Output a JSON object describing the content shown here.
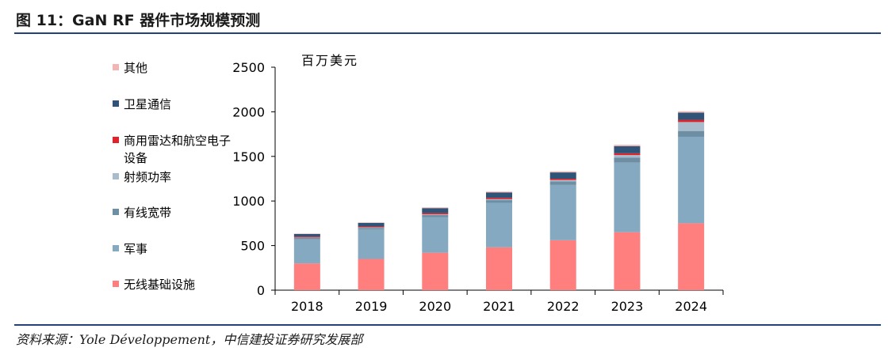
{
  "header": {
    "title": "图 11：GaN RF 器件市场规模预测"
  },
  "footer": {
    "source": "资料来源：Yole Développement，中信建投证券研究发展部"
  },
  "chart_data": {
    "type": "bar",
    "stacked": true,
    "unit_label": "百万美元",
    "categories": [
      "2018",
      "2019",
      "2020",
      "2021",
      "2022",
      "2023",
      "2024"
    ],
    "ylim": [
      0,
      2500
    ],
    "yticks": [
      "0",
      "500",
      "1000",
      "1500",
      "2000",
      "2500"
    ],
    "legend_position": "left",
    "grid": false,
    "series": [
      {
        "name": "无线基础设施",
        "color": "#ff7f7f",
        "values": [
          300,
          350,
          420,
          480,
          560,
          650,
          750
        ]
      },
      {
        "name": "军事",
        "color": "#84a9c0",
        "values": [
          270,
          330,
          400,
          500,
          620,
          780,
          970
        ]
      },
      {
        "name": "有线宽带",
        "color": "#6e8ea4",
        "values": [
          15,
          18,
          22,
          30,
          40,
          55,
          65
        ]
      },
      {
        "name": "射频功率",
        "color": "#a7bccc",
        "values": [
          5,
          6,
          8,
          10,
          15,
          30,
          100
        ]
      },
      {
        "name": "商用雷达和航空电子设备",
        "color": "#e0232b",
        "values": [
          10,
          10,
          15,
          15,
          15,
          20,
          25
        ]
      },
      {
        "name": "卫星通信",
        "color": "#2f5478",
        "values": [
          30,
          40,
          55,
          60,
          70,
          80,
          80
        ]
      },
      {
        "name": "其他",
        "color": "#f3b4b4",
        "values": [
          5,
          6,
          8,
          10,
          12,
          15,
          15
        ]
      }
    ]
  }
}
